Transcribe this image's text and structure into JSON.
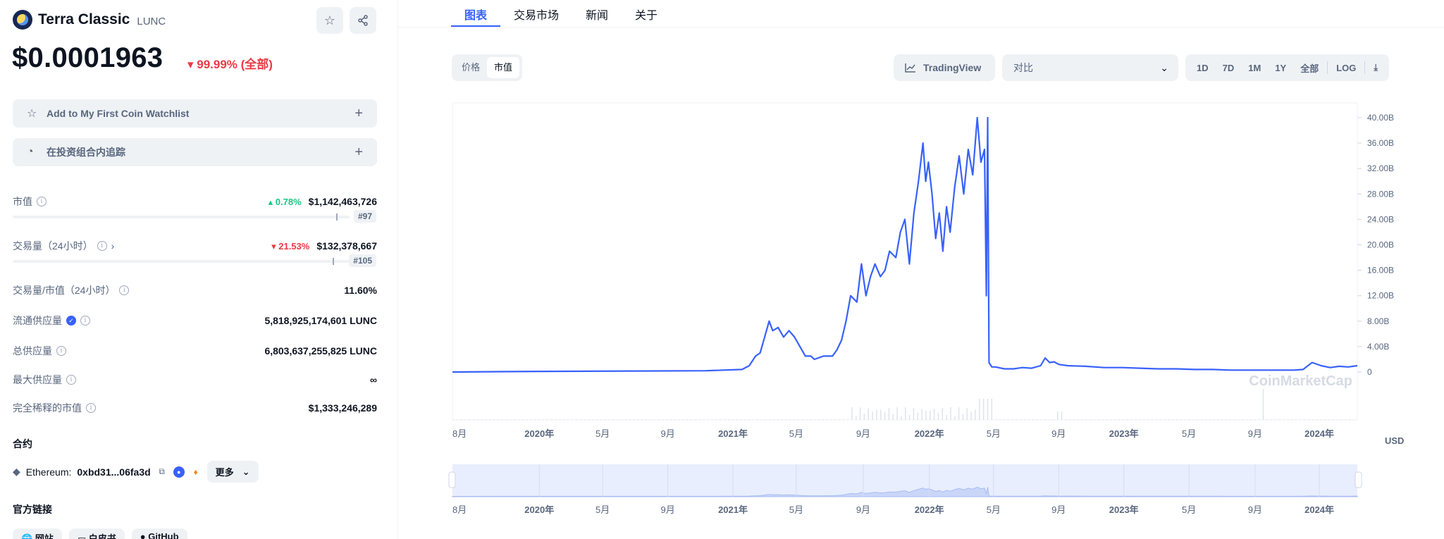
{
  "coin": {
    "name": "Terra Classic",
    "symbol": "LUNC",
    "price": "$0.0001963",
    "change": "▾ 99.99% (全部)"
  },
  "actions": {
    "watchlist": "Add to My First Coin Watchlist",
    "portfolio": "在投资组合内追踪"
  },
  "stats": {
    "market_cap": {
      "label": "市值",
      "change": "▴ 0.78%",
      "value": "$1,142,463,726",
      "rank": "#97",
      "fill_ratio": 0.96
    },
    "volume": {
      "label": "交易量（24小时）",
      "change": "▾ 21.53%",
      "value": "$132,378,667",
      "rank": "#105",
      "fill_ratio": 0.95
    },
    "vol_mcap": {
      "label": "交易量/市值（24小时）",
      "value": "11.60%"
    },
    "circulating": {
      "label": "流通供应量",
      "value": "5,818,925,174,601 LUNC"
    },
    "total": {
      "label": "总供应量",
      "value": "6,803,637,255,825 LUNC"
    },
    "max": {
      "label": "最大供应量",
      "value": "∞"
    },
    "fdv": {
      "label": "完全稀释的市值",
      "value": "$1,333,246,289"
    }
  },
  "contract": {
    "title": "合约",
    "chain": "Ethereum:",
    "address": "0xbd31...06fa3d",
    "more": "更多"
  },
  "links": {
    "title": "官方链接",
    "items": [
      "网站",
      "白皮书",
      "GitHub"
    ]
  },
  "tabs": [
    "图表",
    "交易市场",
    "新闻",
    "关于"
  ],
  "chart_controls": {
    "type_toggle": [
      "价格",
      "市值"
    ],
    "active_type": "市值",
    "tradingview": "TradingView",
    "compare": "对比",
    "ranges": [
      "1D",
      "7D",
      "1M",
      "1Y",
      "全部"
    ],
    "log": "LOG",
    "currency": "USD",
    "watermark": "CoinMarketCap"
  },
  "chart_data": {
    "type": "line",
    "title": "",
    "ylabel": "",
    "ylim": [
      0,
      42
    ],
    "y_unit": "B",
    "y_ticks": [
      "40.00B",
      "36.00B",
      "32.00B",
      "28.00B",
      "24.00B",
      "20.00B",
      "16.00B",
      "12.00B",
      "8.00B",
      "4.00B",
      "0"
    ],
    "x_ticks": [
      "8月",
      "2020年",
      "5月",
      "9月",
      "2021年",
      "5月",
      "9月",
      "2022年",
      "5月",
      "9月",
      "2023年",
      "5月",
      "9月",
      "2024年"
    ],
    "x_tick_pos": [
      0.0,
      0.096,
      0.166,
      0.238,
      0.31,
      0.38,
      0.454,
      0.527,
      0.598,
      0.67,
      0.742,
      0.814,
      0.887,
      0.958
    ],
    "series": [
      {
        "x": [
          0.0,
          0.05,
          0.1,
          0.2,
          0.28,
          0.32,
          0.328,
          0.335,
          0.34,
          0.345,
          0.35,
          0.354,
          0.36,
          0.366,
          0.372,
          0.378,
          0.384,
          0.39,
          0.396,
          0.4,
          0.41,
          0.42,
          0.425,
          0.43,
          0.435,
          0.44,
          0.447,
          0.452,
          0.457,
          0.462,
          0.467,
          0.473,
          0.478,
          0.483,
          0.49,
          0.495,
          0.5,
          0.505,
          0.51,
          0.515,
          0.52,
          0.523,
          0.526,
          0.53,
          0.534,
          0.538,
          0.542,
          0.546,
          0.55,
          0.555,
          0.56,
          0.565,
          0.57,
          0.575,
          0.58,
          0.584,
          0.588,
          0.59,
          0.5915,
          0.593,
          0.596,
          0.6,
          0.61,
          0.62,
          0.63,
          0.64,
          0.65,
          0.655,
          0.66,
          0.665,
          0.67,
          0.68,
          0.7,
          0.72,
          0.74,
          0.76,
          0.78,
          0.8,
          0.82,
          0.84,
          0.86,
          0.88,
          0.9,
          0.92,
          0.93,
          0.94,
          0.95,
          0.96,
          0.97,
          0.98,
          0.99,
          1.0
        ],
        "y": [
          0,
          0.05,
          0.1,
          0.15,
          0.2,
          0.4,
          1.0,
          2.5,
          3.0,
          5.5,
          8.0,
          6.5,
          7.0,
          5.5,
          6.5,
          5.5,
          4.0,
          2.5,
          2.5,
          2.0,
          2.5,
          2.5,
          3.5,
          5.0,
          8.0,
          12.0,
          11.0,
          17.0,
          12.0,
          15.0,
          17.0,
          15.0,
          16.0,
          19.0,
          18.0,
          22.0,
          24.0,
          17.0,
          25.0,
          30.0,
          36.0,
          30.0,
          33.0,
          28.0,
          21.0,
          25.0,
          19.0,
          26.0,
          22.0,
          29.0,
          34.0,
          28.0,
          35.0,
          31.0,
          40.0,
          33.0,
          35.0,
          12.0,
          40.0,
          1.5,
          0.8,
          0.8,
          0.5,
          0.5,
          0.7,
          0.6,
          1.0,
          2.2,
          1.5,
          1.6,
          1.2,
          1.0,
          0.9,
          0.7,
          0.7,
          0.6,
          0.5,
          0.5,
          0.4,
          0.4,
          0.3,
          0.3,
          0.3,
          0.3,
          0.3,
          0.4,
          1.5,
          1.0,
          0.7,
          0.9,
          0.8,
          1.0
        ]
      }
    ]
  }
}
